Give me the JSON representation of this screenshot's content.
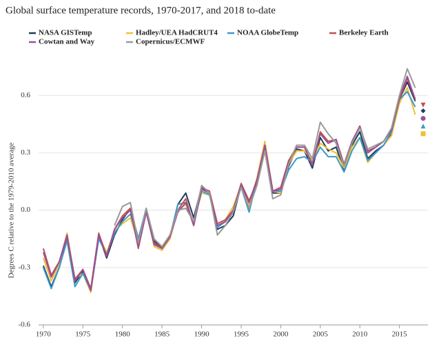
{
  "chart_data": {
    "type": "line",
    "title": "Global surface temperature records, 1970-2017, and 2018 to-date",
    "y_label": "Degrees C relative to the 1979-2010 average",
    "x": [
      1970,
      1971,
      1972,
      1973,
      1974,
      1975,
      1976,
      1977,
      1978,
      1979,
      1980,
      1981,
      1982,
      1983,
      1984,
      1985,
      1986,
      1987,
      1988,
      1989,
      1990,
      1991,
      1992,
      1993,
      1994,
      1995,
      1996,
      1997,
      1998,
      1999,
      2000,
      2001,
      2002,
      2003,
      2004,
      2005,
      2006,
      2007,
      2008,
      2009,
      2010,
      2011,
      2012,
      2013,
      2014,
      2015,
      2016,
      2017
    ],
    "ytd_x": 2018,
    "xlim": [
      1969.4,
      2018.6
    ],
    "xticks": [
      1970,
      1975,
      1980,
      1985,
      1990,
      1995,
      2000,
      2005,
      2010,
      2015
    ],
    "ylim": [
      -0.6,
      0.8
    ],
    "yticks": [
      -0.6,
      -0.3,
      {
        "value": 0,
        "label": "0.0"
      },
      0.3,
      0.6
    ],
    "grid": true,
    "series": [
      {
        "name": "NASA GISTemp",
        "color": "#1f3a5f",
        "marker": "diamond",
        "ytd": 0.52,
        "values": [
          -0.29,
          -0.4,
          -0.3,
          -0.15,
          -0.38,
          -0.32,
          -0.42,
          -0.13,
          -0.25,
          -0.13,
          -0.05,
          0.01,
          -0.15,
          0.0,
          -0.16,
          -0.2,
          -0.14,
          0.03,
          0.09,
          -0.04,
          0.12,
          0.09,
          -0.1,
          -0.08,
          -0.03,
          0.13,
          0.03,
          0.15,
          0.33,
          0.09,
          0.09,
          0.23,
          0.32,
          0.31,
          0.22,
          0.38,
          0.31,
          0.33,
          0.21,
          0.34,
          0.41,
          0.27,
          0.31,
          0.34,
          0.4,
          0.58,
          0.67,
          0.57
        ]
      },
      {
        "name": "Hadley/UEA HadCRUT4",
        "color": "#f0c030",
        "marker": "square",
        "ytd": 0.4,
        "values": [
          -0.25,
          -0.37,
          -0.28,
          -0.12,
          -0.36,
          -0.33,
          -0.43,
          -0.14,
          -0.22,
          -0.11,
          -0.07,
          -0.04,
          -0.17,
          0.0,
          -0.19,
          -0.21,
          -0.15,
          0.0,
          0.03,
          -0.06,
          0.09,
          0.08,
          -0.07,
          -0.05,
          0.02,
          0.13,
          0.03,
          0.17,
          0.36,
          0.1,
          0.09,
          0.24,
          0.31,
          0.31,
          0.26,
          0.35,
          0.32,
          0.3,
          0.22,
          0.33,
          0.38,
          0.25,
          0.3,
          0.34,
          0.39,
          0.56,
          0.64,
          0.5
        ]
      },
      {
        "name": "NOAA GlobeTemp",
        "color": "#3a9ac9",
        "marker": "triangle-up",
        "ytd": 0.44,
        "values": [
          -0.3,
          -0.41,
          -0.3,
          -0.16,
          -0.4,
          -0.33,
          -0.42,
          -0.15,
          -0.23,
          -0.12,
          -0.06,
          -0.02,
          -0.15,
          0.01,
          -0.18,
          -0.2,
          -0.14,
          0.03,
          0.04,
          -0.07,
          0.1,
          0.08,
          -0.09,
          -0.06,
          0.0,
          0.12,
          -0.01,
          0.16,
          0.32,
          0.1,
          0.1,
          0.21,
          0.27,
          0.28,
          0.25,
          0.33,
          0.28,
          0.28,
          0.2,
          0.31,
          0.38,
          0.26,
          0.3,
          0.34,
          0.41,
          0.58,
          0.62,
          0.54
        ]
      },
      {
        "name": "Berkeley Earth",
        "color": "#c0504d",
        "marker": "triangle-down",
        "ytd": 0.55,
        "values": [
          -0.2,
          -0.34,
          -0.27,
          -0.14,
          -0.36,
          -0.31,
          -0.41,
          -0.12,
          -0.24,
          -0.1,
          -0.03,
          0.01,
          -0.2,
          -0.01,
          -0.17,
          -0.2,
          -0.14,
          0.0,
          0.06,
          -0.08,
          0.12,
          0.1,
          -0.07,
          -0.05,
          0.0,
          0.14,
          0.05,
          0.15,
          0.34,
          0.1,
          0.12,
          0.26,
          0.33,
          0.33,
          0.24,
          0.41,
          0.36,
          0.37,
          0.24,
          0.36,
          0.44,
          0.31,
          0.33,
          0.36,
          0.42,
          0.58,
          0.69,
          0.58
        ]
      },
      {
        "name": "Cowtan and Way",
        "color": "#9b4f96",
        "marker": "circle",
        "ytd": 0.48,
        "values": [
          -0.22,
          -0.35,
          -0.27,
          -0.13,
          -0.37,
          -0.31,
          -0.42,
          -0.13,
          -0.24,
          -0.1,
          -0.04,
          0.0,
          -0.19,
          -0.01,
          -0.18,
          -0.2,
          -0.14,
          -0.01,
          0.04,
          -0.08,
          0.11,
          0.09,
          -0.08,
          -0.06,
          0.0,
          0.13,
          0.04,
          0.16,
          0.34,
          0.1,
          0.11,
          0.25,
          0.33,
          0.33,
          0.24,
          0.4,
          0.35,
          0.37,
          0.23,
          0.36,
          0.44,
          0.3,
          0.33,
          0.36,
          0.42,
          0.59,
          0.7,
          0.58
        ]
      },
      {
        "name": "Copernicus/ECMWF",
        "color": "#999999",
        "marker": null,
        "ytd": null,
        "values": [
          null,
          null,
          null,
          null,
          null,
          null,
          null,
          null,
          null,
          -0.08,
          0.02,
          0.04,
          -0.17,
          0.01,
          -0.15,
          -0.19,
          -0.13,
          0.0,
          0.01,
          -0.06,
          0.13,
          0.09,
          -0.13,
          -0.08,
          -0.01,
          0.12,
          0.01,
          0.13,
          0.31,
          0.06,
          0.08,
          0.24,
          0.34,
          0.34,
          0.27,
          0.46,
          0.4,
          0.35,
          0.23,
          0.35,
          0.43,
          0.32,
          0.34,
          0.36,
          0.43,
          0.6,
          0.74,
          0.64
        ]
      }
    ]
  }
}
